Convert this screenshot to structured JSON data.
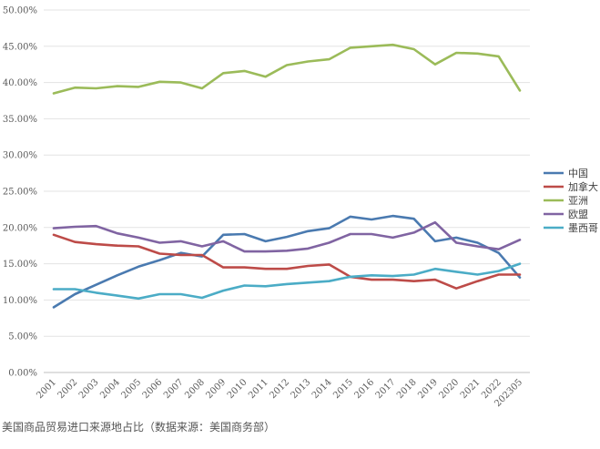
{
  "caption": "美国商品贸易进口来源地占比（数据来源：美国商务部）",
  "chart_data": {
    "type": "line",
    "title": "",
    "xlabel": "",
    "ylabel": "",
    "x": [
      "2001",
      "2002",
      "2003",
      "2004",
      "2005",
      "2006",
      "2007",
      "2008",
      "2009",
      "2010",
      "2011",
      "2012",
      "2013",
      "2014",
      "2015",
      "2016",
      "2017",
      "2018",
      "2019",
      "2020",
      "2021",
      "2022",
      "2023.05"
    ],
    "ylim": [
      0,
      50
    ],
    "y_ticks": [
      0,
      5,
      10,
      15,
      20,
      25,
      30,
      35,
      40,
      45,
      50
    ],
    "y_tick_labels": [
      "0.00%",
      "5.00%",
      "10.00%",
      "15.00%",
      "20.00%",
      "25.00%",
      "30.00%",
      "35.00%",
      "40.00%",
      "45.00%",
      "50.00%"
    ],
    "x_tick_labels": [
      "2001",
      "2002",
      "2003",
      "2004",
      "2005",
      "2006",
      "2007",
      "2008",
      "2009",
      "2010",
      "2011",
      "2012",
      "2013",
      "2014",
      "2015",
      "2016",
      "2017",
      "2018",
      "2019",
      "2020",
      "2021",
      "2022",
      "202305"
    ],
    "grid": "horizontal",
    "legend_position": "right",
    "series": [
      {
        "name": "中国",
        "color": "#4a7ab0",
        "values": [
          9.0,
          10.8,
          12.1,
          13.4,
          14.6,
          15.5,
          16.5,
          16.0,
          19.0,
          19.1,
          18.1,
          18.7,
          19.5,
          19.9,
          21.5,
          21.1,
          21.6,
          21.2,
          18.1,
          18.6,
          17.9,
          16.5,
          13.1
        ]
      },
      {
        "name": "加拿大",
        "color": "#bd4b48",
        "values": [
          19.0,
          18.0,
          17.7,
          17.5,
          17.4,
          16.4,
          16.2,
          16.2,
          14.5,
          14.5,
          14.3,
          14.3,
          14.7,
          14.9,
          13.2,
          12.8,
          12.8,
          12.6,
          12.8,
          11.6,
          12.6,
          13.5,
          13.5
        ]
      },
      {
        "name": "亚洲",
        "color": "#9bbb59",
        "values": [
          38.5,
          39.3,
          39.2,
          39.5,
          39.4,
          40.1,
          40.0,
          39.2,
          41.3,
          41.6,
          40.8,
          42.4,
          42.9,
          43.2,
          44.8,
          45.0,
          45.2,
          44.6,
          42.5,
          44.1,
          44.0,
          43.6,
          38.9
        ]
      },
      {
        "name": "欧盟",
        "color": "#8064a2",
        "values": [
          19.9,
          20.1,
          20.2,
          19.2,
          18.6,
          17.9,
          18.1,
          17.4,
          18.1,
          16.7,
          16.7,
          16.8,
          17.1,
          17.9,
          19.1,
          19.1,
          18.6,
          19.3,
          20.7,
          17.9,
          17.4,
          17.0,
          18.3
        ]
      },
      {
        "name": "墨西哥",
        "color": "#4bacc6",
        "values": [
          11.5,
          11.5,
          11.0,
          10.6,
          10.2,
          10.8,
          10.8,
          10.3,
          11.3,
          12.0,
          11.9,
          12.2,
          12.4,
          12.6,
          13.2,
          13.4,
          13.3,
          13.5,
          14.3,
          13.9,
          13.5,
          14.0,
          15.0
        ]
      }
    ]
  }
}
